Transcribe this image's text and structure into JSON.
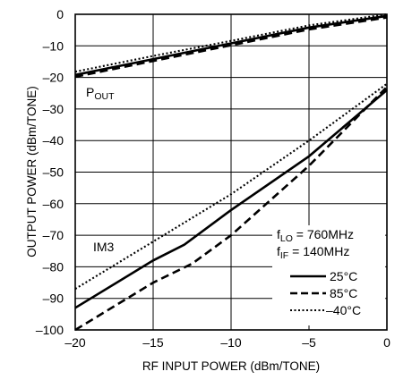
{
  "chart_data": {
    "type": "line",
    "title": "",
    "xlabel": "RF INPUT POWER (dBm/TONE)",
    "ylabel": "OUTPUT POWER (dBm/TONE)",
    "xlim": [
      -20,
      0
    ],
    "ylim": [
      -100,
      0
    ],
    "x_ticks": [
      -20,
      -15,
      -10,
      -5,
      0
    ],
    "y_ticks": [
      0,
      -10,
      -20,
      -30,
      -40,
      -50,
      -60,
      -70,
      -80,
      -90,
      -100
    ],
    "x_tick_labels": [
      "–20",
      "–15",
      "–10",
      "–5",
      "0"
    ],
    "y_tick_labels": [
      "0",
      "–10",
      "–20",
      "–30",
      "–40",
      "–50",
      "–60",
      "–70",
      "–80",
      "–90",
      "–100"
    ],
    "grid": true,
    "annotations": {
      "pout": {
        "main": "P",
        "sub": "OUT"
      },
      "im3": "IM3",
      "flo": {
        "main": "f",
        "sub": "LO",
        "rest": " = 760MHz"
      },
      "fif": {
        "main": "f",
        "sub": "IF",
        "rest": " = 140MHz"
      }
    },
    "legend_position": "bottom-right",
    "legend": [
      {
        "label": "25°C",
        "style": "solid"
      },
      {
        "label": "85°C",
        "style": "dashed"
      },
      {
        "label": "–40°C",
        "style": "dotted"
      }
    ],
    "series": [
      {
        "group": "POUT",
        "style": "solid",
        "x": [
          -20,
          -15,
          -10,
          -5,
          0
        ],
        "y": [
          -19.2,
          -14.2,
          -9.2,
          -4.2,
          -0.5
        ]
      },
      {
        "group": "POUT",
        "style": "dashed",
        "x": [
          -20,
          -15,
          -10,
          -5,
          0
        ],
        "y": [
          -19.8,
          -14.8,
          -9.8,
          -4.8,
          -1.0
        ]
      },
      {
        "group": "POUT",
        "style": "dotted",
        "x": [
          -20,
          -15,
          -10,
          -5,
          0
        ],
        "y": [
          -18.2,
          -13.2,
          -8.4,
          -3.5,
          0
        ]
      },
      {
        "group": "IM3",
        "style": "solid",
        "x": [
          -20,
          -15,
          -13,
          -10,
          -5,
          0
        ],
        "y": [
          -93,
          -78,
          -73,
          -62,
          -45,
          -24
        ]
      },
      {
        "group": "IM3",
        "style": "dashed",
        "x": [
          -20,
          -15,
          -12.5,
          -10,
          -5,
          0
        ],
        "y": [
          -100,
          -85,
          -79,
          -70,
          -48,
          -23
        ]
      },
      {
        "group": "IM3",
        "style": "dotted",
        "x": [
          -20,
          -15,
          -10,
          -5,
          0
        ],
        "y": [
          -87,
          -72,
          -57,
          -40,
          -22
        ]
      }
    ]
  }
}
